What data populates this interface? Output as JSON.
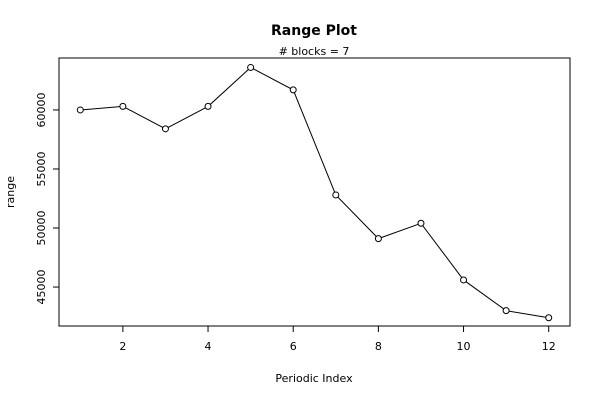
{
  "chart_data": {
    "type": "line",
    "title": "Range Plot",
    "subtitle": "# blocks =  7",
    "xlabel": "Periodic Index",
    "ylabel": "range",
    "x": [
      1,
      2,
      3,
      4,
      5,
      6,
      7,
      8,
      9,
      10,
      11,
      12
    ],
    "values": [
      60000,
      60300,
      58400,
      60300,
      63600,
      61700,
      52800,
      49100,
      50400,
      45600,
      43000,
      42400
    ],
    "xlim": [
      0.5,
      12.5
    ],
    "ylim": [
      41700,
      64400
    ],
    "x_ticks": [
      2,
      4,
      6,
      8,
      10,
      12
    ],
    "y_ticks": [
      45000,
      50000,
      55000,
      60000
    ],
    "grid": false,
    "marker": "open-circle",
    "line_color": "#000000"
  }
}
